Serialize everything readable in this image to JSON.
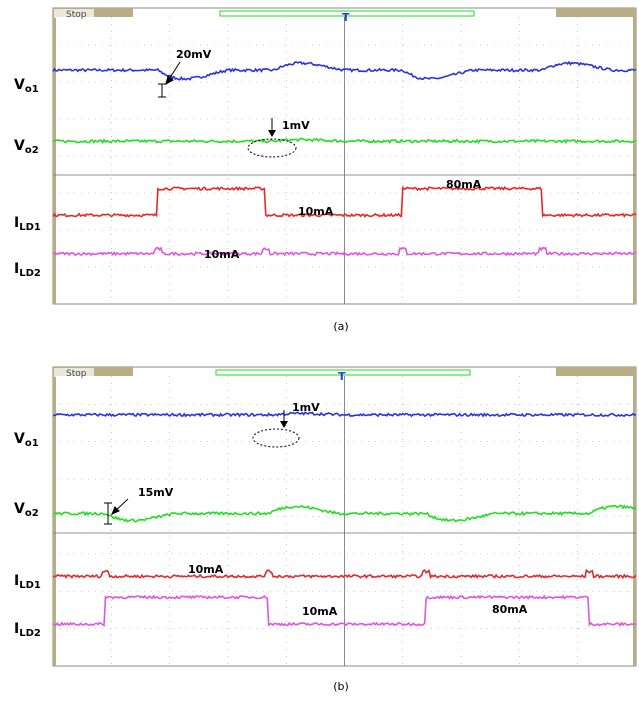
{
  "colors": {
    "frame": "#b9ad86",
    "grid": "#9aa0a6",
    "blue": "#2b35d6",
    "green": "#22dd22",
    "red": "#e22a2a",
    "magenta": "#e055e0",
    "trigger": "#2244cc"
  },
  "chart_data": [
    {
      "type": "line",
      "panel_label": "(a)",
      "status": "Stop",
      "x_domain": [
        0,
        100
      ],
      "y_domain": [
        0,
        100
      ],
      "trace_labels": [
        {
          "main": "V",
          "sub": "o1"
        },
        {
          "main": "V",
          "sub": "o2"
        },
        {
          "main": "I",
          "sub": "LD1"
        },
        {
          "main": "I",
          "sub": "LD2"
        }
      ],
      "series": [
        {
          "key": "Vo1",
          "color": "blue",
          "base": 79,
          "events": [
            [
              18,
              -5,
              "dip"
            ],
            [
              38,
              4,
              "bump"
            ],
            [
              60,
              -5,
              "dip"
            ],
            [
              84,
              4,
              "bump"
            ]
          ]
        },
        {
          "key": "Vo2",
          "color": "green",
          "base": 55,
          "events": [
            [
              38,
              0.8,
              "bump"
            ]
          ]
        },
        {
          "key": "ILD1",
          "color": "red",
          "base": 30,
          "steps": [
            [
              0,
              0
            ],
            [
              18,
              9
            ],
            [
              36.5,
              0
            ],
            [
              60,
              9
            ],
            [
              84,
              0
            ]
          ]
        },
        {
          "key": "ILD2",
          "color": "magenta",
          "base": 17,
          "glitches": [
            18,
            36.5,
            60,
            84
          ]
        }
      ],
      "annotations": {
        "arrow_20mV": "20mV",
        "arrow_1mV": "1mV",
        "ild1_low": "10mA",
        "ild1_high": "80mA",
        "ild2": "10mA"
      }
    },
    {
      "type": "line",
      "panel_label": "(b)",
      "status": "Stop",
      "x_domain": [
        0,
        100
      ],
      "y_domain": [
        0,
        100
      ],
      "trace_labels": [
        {
          "main": "V",
          "sub": "o1"
        },
        {
          "main": "V",
          "sub": "o2"
        },
        {
          "main": "I",
          "sub": "LD1"
        },
        {
          "main": "I",
          "sub": "LD2"
        }
      ],
      "series": [
        {
          "key": "Vo1",
          "color": "blue",
          "base": 84,
          "events": [
            [
              38,
              0.8,
              "bump"
            ]
          ]
        },
        {
          "key": "Vo2",
          "color": "green",
          "base": 51,
          "events": [
            [
              9,
              -4,
              "dip"
            ],
            [
              37,
              4,
              "bump"
            ],
            [
              64,
              -4,
              "dip"
            ],
            [
              92,
              4,
              "bump"
            ]
          ]
        },
        {
          "key": "ILD1",
          "color": "red",
          "base": 30,
          "glitches": [
            9,
            37,
            64,
            92
          ]
        },
        {
          "key": "ILD2",
          "color": "magenta",
          "base": 14,
          "steps": [
            [
              0,
              0
            ],
            [
              9,
              9
            ],
            [
              37,
              0
            ],
            [
              64,
              9
            ],
            [
              92,
              0
            ]
          ]
        }
      ],
      "annotations": {
        "arrow_1mV": "1mV",
        "arrow_15mV": "15mV",
        "ild1": "10mA",
        "ild2_low": "10mA",
        "ild2_high": "80mA"
      }
    }
  ]
}
